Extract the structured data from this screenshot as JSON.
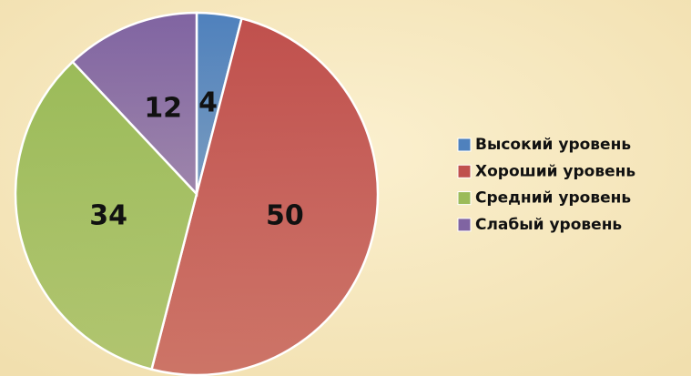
{
  "chart_data": {
    "type": "pie",
    "categories": [
      "Высокий уровень",
      "Хороший уровень",
      "Средний уровень",
      "Слабый уровень"
    ],
    "values": [
      4,
      50,
      34,
      12
    ],
    "colors": [
      "#4f81bd",
      "#c0504d",
      "#9bbb59",
      "#8064a2"
    ],
    "legend": "right"
  }
}
